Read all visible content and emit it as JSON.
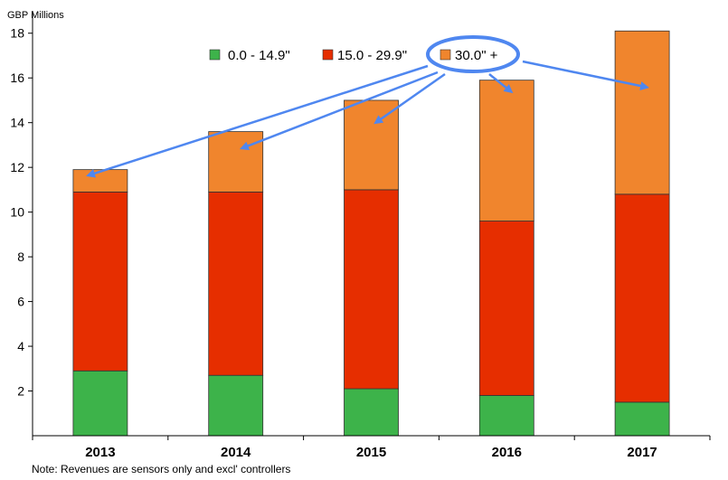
{
  "chart_data": {
    "type": "bar",
    "stacked": true,
    "ylabel": "GBP Millions",
    "categories": [
      "2013",
      "2014",
      "2015",
      "2016",
      "2017"
    ],
    "ylim": [
      0,
      19
    ],
    "yticks": [
      2,
      4,
      6,
      8,
      10,
      12,
      14,
      16,
      18
    ],
    "grid": false,
    "legend_position": "top",
    "series": [
      {
        "name": "0.0 - 14.9\"",
        "color": "#3db34a",
        "values": [
          2.9,
          2.7,
          2.1,
          1.8,
          1.5
        ]
      },
      {
        "name": "15.0 - 29.9\"",
        "color": "#e62e00",
        "values": [
          8.0,
          8.2,
          8.9,
          7.8,
          9.3
        ]
      },
      {
        "name": "30.0\" +",
        "color": "#f0852d",
        "values": [
          1.0,
          2.7,
          4.0,
          6.3,
          7.3
        ]
      }
    ],
    "highlight": {
      "series": "30.0\" +",
      "ellipse_color": "#4f87f0",
      "arrow_color": "#4f87f0"
    },
    "note": "Note: Revenues are sensors only and excl' controllers"
  }
}
